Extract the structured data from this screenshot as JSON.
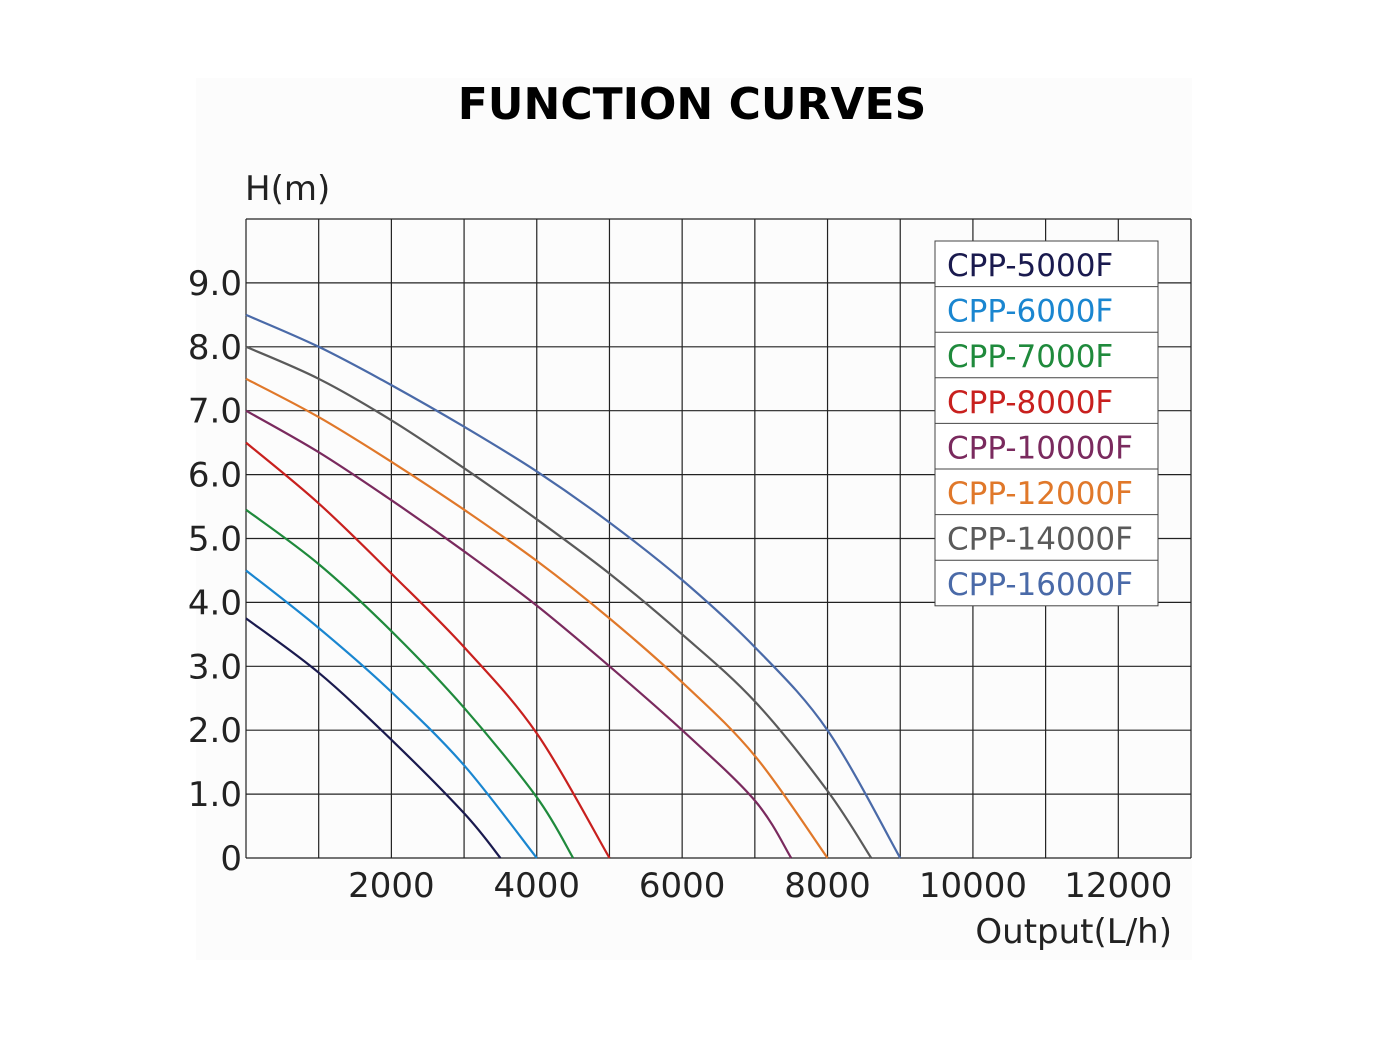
{
  "chart_data": {
    "type": "line",
    "title": "FUNCTION CURVES",
    "ylabel": "H(m)",
    "xlabel": "Output(L/h)",
    "xlim": [
      0,
      13000
    ],
    "ylim": [
      0,
      10
    ],
    "grid": true,
    "x_ticks": [
      "2000",
      "4000",
      "6000",
      "8000",
      "10000",
      "12000"
    ],
    "y_ticks": [
      "0",
      "1.0",
      "2.0",
      "3.0",
      "4.0",
      "5.0",
      "6.0",
      "7.0",
      "8.0",
      "9.0"
    ],
    "legend_position": "top-right",
    "series": [
      {
        "name": "CPP-5000F",
        "color": "#1a1a4e",
        "points": [
          [
            0,
            3.75
          ],
          [
            1000,
            2.9
          ],
          [
            2000,
            1.85
          ],
          [
            3000,
            0.7
          ],
          [
            3500,
            0
          ]
        ]
      },
      {
        "name": "CPP-6000F",
        "color": "#1a86d0",
        "points": [
          [
            0,
            4.5
          ],
          [
            1000,
            3.6
          ],
          [
            2000,
            2.6
          ],
          [
            3000,
            1.45
          ],
          [
            4000,
            0
          ]
        ]
      },
      {
        "name": "CPP-7000F",
        "color": "#1f8a3c",
        "points": [
          [
            0,
            5.45
          ],
          [
            1000,
            4.6
          ],
          [
            2000,
            3.55
          ],
          [
            3000,
            2.35
          ],
          [
            4000,
            0.95
          ],
          [
            4500,
            0
          ]
        ]
      },
      {
        "name": "CPP-8000F",
        "color": "#c8201e",
        "points": [
          [
            0,
            6.5
          ],
          [
            1000,
            5.55
          ],
          [
            2000,
            4.45
          ],
          [
            3000,
            3.3
          ],
          [
            4000,
            1.95
          ],
          [
            5000,
            0
          ]
        ]
      },
      {
        "name": "CPP-10000F",
        "color": "#7a2a5e",
        "points": [
          [
            0,
            7.0
          ],
          [
            1000,
            6.35
          ],
          [
            2000,
            5.6
          ],
          [
            3000,
            4.8
          ],
          [
            4000,
            3.95
          ],
          [
            5000,
            3.0
          ],
          [
            6000,
            2.0
          ],
          [
            7000,
            0.9
          ],
          [
            7500,
            0
          ]
        ]
      },
      {
        "name": "CPP-12000F",
        "color": "#e0782a",
        "points": [
          [
            0,
            7.5
          ],
          [
            1000,
            6.9
          ],
          [
            2000,
            6.2
          ],
          [
            3000,
            5.45
          ],
          [
            4000,
            4.65
          ],
          [
            5000,
            3.75
          ],
          [
            6000,
            2.75
          ],
          [
            7000,
            1.6
          ],
          [
            8000,
            0
          ]
        ]
      },
      {
        "name": "CPP-14000F",
        "color": "#5a5a5a",
        "points": [
          [
            0,
            8.0
          ],
          [
            1000,
            7.5
          ],
          [
            2000,
            6.85
          ],
          [
            3000,
            6.1
          ],
          [
            4000,
            5.3
          ],
          [
            5000,
            4.45
          ],
          [
            6000,
            3.5
          ],
          [
            7000,
            2.45
          ],
          [
            8000,
            1.05
          ],
          [
            8600,
            0
          ]
        ]
      },
      {
        "name": "CPP-16000F",
        "color": "#4a6aa8",
        "points": [
          [
            0,
            8.5
          ],
          [
            1000,
            8.0
          ],
          [
            2000,
            7.4
          ],
          [
            3000,
            6.75
          ],
          [
            4000,
            6.05
          ],
          [
            5000,
            5.25
          ],
          [
            6000,
            4.35
          ],
          [
            7000,
            3.3
          ],
          [
            8000,
            2.0
          ],
          [
            9000,
            0
          ]
        ]
      }
    ]
  }
}
